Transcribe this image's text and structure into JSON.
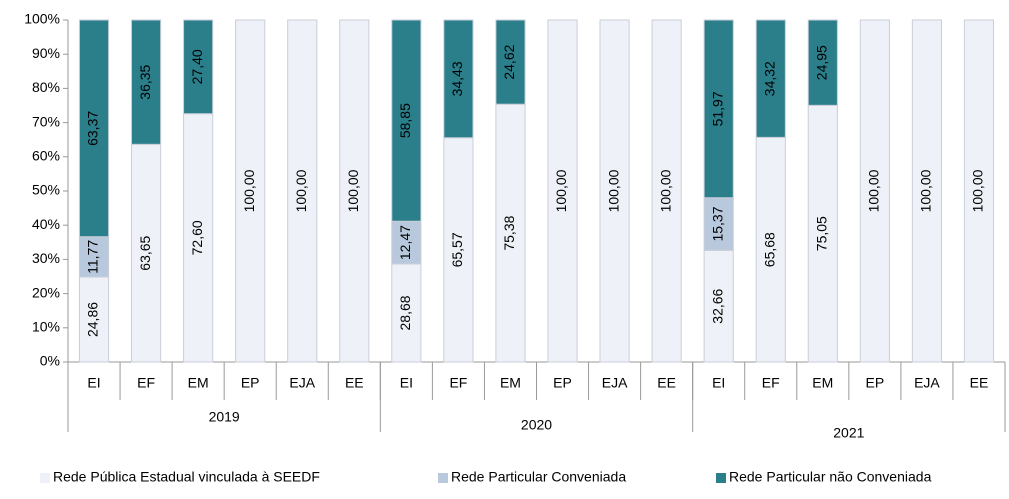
{
  "chart_data": {
    "type": "stacked_bar",
    "categories": [
      "EI",
      "EF",
      "EM",
      "EP",
      "EJA",
      "EE",
      "EI",
      "EF",
      "EM",
      "EP",
      "EJA",
      "EE",
      "EI",
      "EF",
      "EM",
      "EP",
      "EJA",
      "EE"
    ],
    "group_labels": [
      "2019",
      "2020",
      "2021"
    ],
    "series": [
      {
        "name": "Rede Pública Estadual vinculada à SEEDF",
        "color": "#eef1f7",
        "values": [
          24.86,
          63.65,
          72.6,
          100,
          100,
          100,
          28.68,
          65.57,
          75.38,
          100,
          100,
          100,
          32.66,
          65.68,
          75.05,
          100,
          100,
          100
        ],
        "value_labels": [
          "24,86",
          "63,65",
          "72,60",
          "100,00",
          "100,00",
          "100,00",
          "28,68",
          "65,57",
          "75,38",
          "100,00",
          "100,00",
          "100,00",
          "32,66",
          "65,68",
          "75,05",
          "100,00",
          "100,00",
          "100,00"
        ]
      },
      {
        "name": "Rede Particular Conveniada",
        "color": "#b9c9dd",
        "values": [
          11.77,
          null,
          null,
          null,
          null,
          null,
          12.47,
          null,
          null,
          null,
          null,
          null,
          15.37,
          null,
          null,
          null,
          null,
          null
        ],
        "value_labels": [
          "11,77",
          null,
          null,
          null,
          null,
          null,
          "12,47",
          null,
          null,
          null,
          null,
          null,
          "15,37",
          null,
          null,
          null,
          null,
          null
        ]
      },
      {
        "name": "Rede Particular não Conveniada",
        "color": "#2b7f8b",
        "values": [
          63.37,
          36.35,
          27.4,
          null,
          null,
          null,
          58.85,
          34.43,
          24.62,
          null,
          null,
          null,
          51.97,
          34.32,
          24.95,
          null,
          null,
          null
        ],
        "value_labels": [
          "63,37",
          "36,35",
          "27,40",
          null,
          null,
          null,
          "58,85",
          "34,43",
          "24,62",
          null,
          null,
          null,
          "51,97",
          "34,32",
          "24,95",
          null,
          null,
          null
        ]
      }
    ],
    "ylim": [
      0,
      100
    ],
    "yticks": [
      {
        "value": 0,
        "label": "0%"
      },
      {
        "value": 10,
        "label": "10%"
      },
      {
        "value": 20,
        "label": "20%"
      },
      {
        "value": 30,
        "label": "30%"
      },
      {
        "value": 40,
        "label": "40%"
      },
      {
        "value": 50,
        "label": "50%"
      },
      {
        "value": 60,
        "label": "60%"
      },
      {
        "value": 70,
        "label": "70%"
      },
      {
        "value": 80,
        "label": "80%"
      },
      {
        "value": 90,
        "label": "90%"
      },
      {
        "value": 100,
        "label": "100%"
      }
    ],
    "legend": "bottom"
  }
}
